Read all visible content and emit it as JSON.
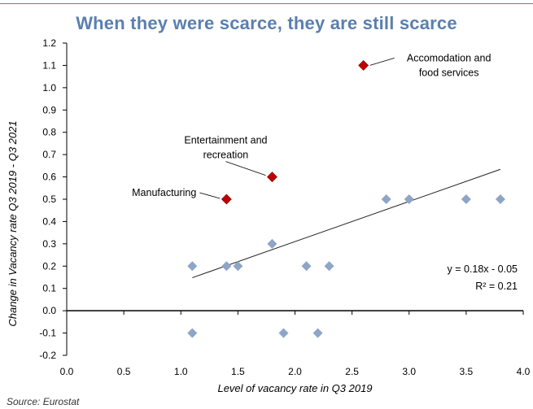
{
  "title": "When they were scarce, they are still scarce",
  "source": "Source: Eurostat",
  "chart_data": {
    "type": "scatter",
    "title": "When they were scarce, they are still scarce",
    "xlabel": "Level of vacancy rate in Q3 2019",
    "ylabel": "Change in Vacancy rate Q3 2019 - Q3 2021",
    "xlim": [
      0.0,
      4.0
    ],
    "ylim": [
      -0.2,
      1.2
    ],
    "x_ticks": [
      "0.0",
      "0.5",
      "1.0",
      "1.5",
      "2.0",
      "2.5",
      "3.0",
      "3.5",
      "4.0"
    ],
    "y_ticks": [
      "-0.2",
      "-0.1",
      "0.0",
      "0.1",
      "0.2",
      "0.3",
      "0.4",
      "0.5",
      "0.6",
      "0.7",
      "0.8",
      "0.9",
      "1.0",
      "1.1",
      "1.2"
    ],
    "grid": false,
    "points": [
      {
        "x": 1.1,
        "y": 0.2
      },
      {
        "x": 1.4,
        "y": 0.2
      },
      {
        "x": 1.5,
        "y": 0.2
      },
      {
        "x": 1.8,
        "y": 0.3
      },
      {
        "x": 2.1,
        "y": 0.2
      },
      {
        "x": 2.3,
        "y": 0.2
      },
      {
        "x": 2.8,
        "y": 0.5
      },
      {
        "x": 3.0,
        "y": 0.5
      },
      {
        "x": 3.5,
        "y": 0.5
      },
      {
        "x": 3.8,
        "y": 0.5
      },
      {
        "x": 1.1,
        "y": -0.1
      },
      {
        "x": 1.9,
        "y": -0.1
      },
      {
        "x": 2.2,
        "y": -0.1
      }
    ],
    "highlighted": [
      {
        "x": 1.4,
        "y": 0.5,
        "label": "Manufacturing"
      },
      {
        "x": 1.8,
        "y": 0.6,
        "label": "Entertainment and recreation"
      },
      {
        "x": 2.6,
        "y": 1.1,
        "label": "Accomodation and food services"
      }
    ],
    "trendline": {
      "x_range": [
        1.1,
        3.8
      ],
      "equation": "y = 0.18x - 0.05",
      "r_squared": "R² = 0.21"
    },
    "colors": {
      "points": "#8ea5c8",
      "highlighted": "#c00000",
      "trendline": "#222222",
      "title": "#5b7fae"
    }
  }
}
